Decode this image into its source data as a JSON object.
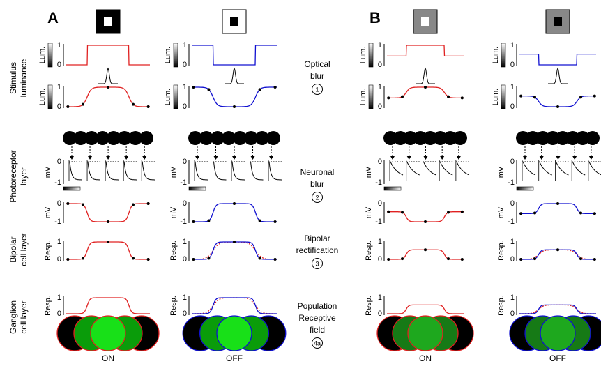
{
  "panel_labels": [
    "A",
    "B"
  ],
  "columns": [
    "ON",
    "OFF",
    "ON",
    "OFF"
  ],
  "row_labels": [
    [
      "Stimulus",
      "luminance"
    ],
    [
      "Photoreceptor",
      "layer"
    ],
    [
      "Bipolar",
      "cell layer"
    ],
    [
      "Ganglion",
      "cell layer"
    ]
  ],
  "stages": [
    {
      "lines": [
        "Optical",
        "blur"
      ],
      "step": "1"
    },
    {
      "lines": [
        "Neuronal",
        "blur"
      ],
      "step": "2"
    },
    {
      "lines": [
        "Bipolar",
        "rectification"
      ],
      "step": "3"
    },
    {
      "lines": [
        "Population",
        "Receptive",
        "field"
      ],
      "step": "4a"
    }
  ],
  "axes": {
    "lum": {
      "label": "Lum.",
      "ticks": [
        "1",
        "0"
      ]
    },
    "mv": {
      "label": "mV",
      "ticks": [
        "0",
        "-1"
      ]
    },
    "resp": {
      "label": "Resp.",
      "ticks": [
        "1",
        "0"
      ]
    }
  }
}
